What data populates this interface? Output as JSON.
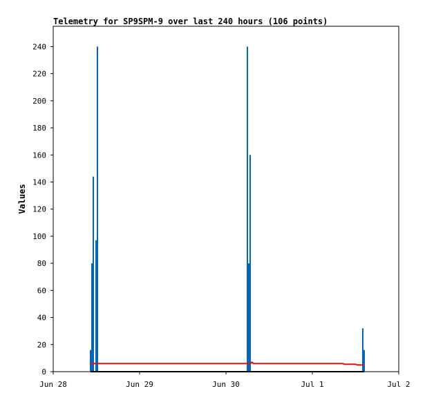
{
  "chart_data": {
    "type": "line",
    "title": "Telemetry for SP9SPM-9 over last 240 hours (106 points)",
    "ylabel": "Values",
    "xlim": [
      0,
      4
    ],
    "xticks": [
      {
        "value": 0,
        "label": "Jun 28"
      },
      {
        "value": 1,
        "label": "Jun 29"
      },
      {
        "value": 2,
        "label": "Jun 30"
      },
      {
        "value": 3,
        "label": "Jul 1"
      },
      {
        "value": 4,
        "label": "Jul 2"
      }
    ],
    "ylim": [
      0,
      255
    ],
    "yticks": [
      0,
      20,
      40,
      60,
      80,
      100,
      120,
      140,
      160,
      180,
      200,
      220,
      240
    ],
    "series": [
      {
        "style": "impulse",
        "color": "#0066bb",
        "x": [
          0.432,
          0.448,
          0.464,
          0.496,
          0.512,
          2.248,
          2.264,
          2.28,
          3.584,
          3.6
        ],
        "values": [
          16,
          80,
          144,
          97,
          240,
          240,
          80,
          160,
          32,
          16
        ]
      },
      {
        "style": "line",
        "color": "#e01010",
        "x": [
          0.432,
          2.28,
          2.3,
          2.32,
          3.35,
          3.37,
          3.5,
          3.52,
          3.6
        ],
        "values": [
          6,
          6,
          7,
          6,
          6,
          5.5,
          5.5,
          5,
          5
        ]
      },
      {
        "style": "line",
        "color": "#000000",
        "x": [
          0.432,
          3.6
        ],
        "values": [
          0,
          0
        ]
      }
    ]
  }
}
